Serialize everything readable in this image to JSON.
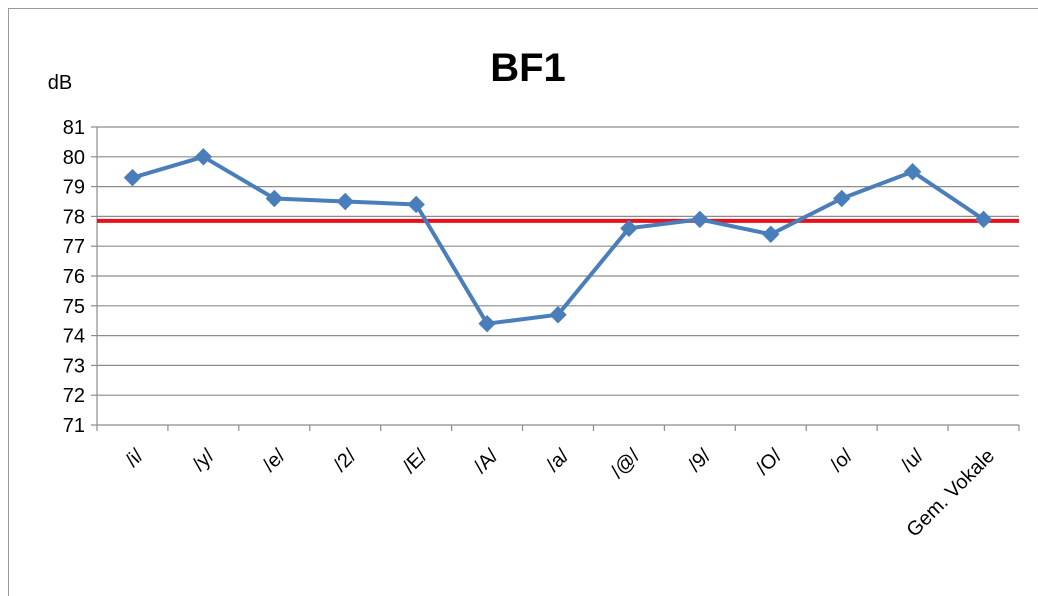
{
  "chart_data": {
    "type": "line",
    "title": "BF1",
    "ylabel": "dB",
    "xlabel": "",
    "ylim": [
      71,
      81
    ],
    "yticks": [
      71,
      72,
      73,
      74,
      75,
      76,
      77,
      78,
      79,
      80,
      81
    ],
    "grid": true,
    "legend": "none",
    "categories": [
      "/i/",
      "/y/",
      "/e/",
      "/2/",
      "/E/",
      "/A/",
      "/a/",
      "/@/",
      "/9/",
      "/O/",
      "/o/",
      "/u/",
      "Gem. Vokale"
    ],
    "series": [
      {
        "color": "#4a7ebb",
        "marker": "diamond",
        "values": [
          79.3,
          80.0,
          78.6,
          78.5,
          78.4,
          74.4,
          74.7,
          77.6,
          77.9,
          77.4,
          78.6,
          79.5,
          77.9
        ]
      }
    ],
    "reference_line": {
      "value": 77.85,
      "color": "#e8101a"
    }
  }
}
